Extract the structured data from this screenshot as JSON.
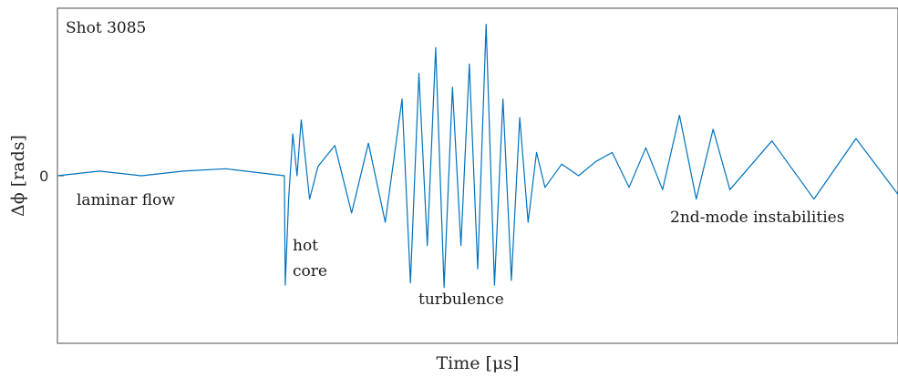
{
  "chart_data": {
    "type": "line",
    "title": "",
    "xlabel": "Time [μs]",
    "ylabel": "Δϕ [rads]",
    "yticks": [
      {
        "value": 0,
        "label": "0"
      }
    ],
    "ylim": [
      -0.72,
      0.72
    ],
    "xlim": [
      0,
      1
    ],
    "grid": false,
    "legend": "none",
    "color": "#0072BD",
    "annotations": [
      {
        "id": "shot",
        "text": "Shot 3085"
      },
      {
        "id": "laminar",
        "text": "laminar flow"
      },
      {
        "id": "hot1",
        "text": "hot"
      },
      {
        "id": "hot2",
        "text": "core"
      },
      {
        "id": "turb",
        "text": "turbulence"
      },
      {
        "id": "second",
        "text": "2nd-mode instabilities"
      }
    ],
    "series": [
      {
        "name": "",
        "x": [
          0.0,
          0.05,
          0.1,
          0.15,
          0.2,
          0.27,
          0.271,
          0.275,
          0.28,
          0.285,
          0.29,
          0.3,
          0.31,
          0.33,
          0.35,
          0.37,
          0.39,
          0.41,
          0.42,
          0.43,
          0.44,
          0.45,
          0.46,
          0.47,
          0.48,
          0.49,
          0.5,
          0.51,
          0.52,
          0.53,
          0.54,
          0.55,
          0.56,
          0.57,
          0.58,
          0.6,
          0.62,
          0.64,
          0.66,
          0.68,
          0.7,
          0.72,
          0.74,
          0.76,
          0.78,
          0.8,
          0.85,
          0.9,
          0.95,
          1.0
        ],
        "y": [
          0.0,
          0.02,
          0.0,
          0.02,
          0.03,
          0.0,
          -0.47,
          -0.1,
          0.18,
          0.0,
          0.24,
          -0.1,
          0.04,
          0.13,
          -0.16,
          0.14,
          -0.2,
          0.33,
          -0.46,
          0.44,
          -0.3,
          0.55,
          -0.48,
          0.38,
          -0.3,
          0.48,
          -0.4,
          0.65,
          -0.47,
          0.33,
          -0.45,
          0.25,
          -0.2,
          0.1,
          -0.05,
          0.05,
          0.0,
          0.06,
          0.1,
          -0.05,
          0.12,
          -0.06,
          0.26,
          -0.1,
          0.2,
          -0.06,
          0.15,
          -0.1,
          0.16,
          -0.08
        ]
      }
    ]
  }
}
